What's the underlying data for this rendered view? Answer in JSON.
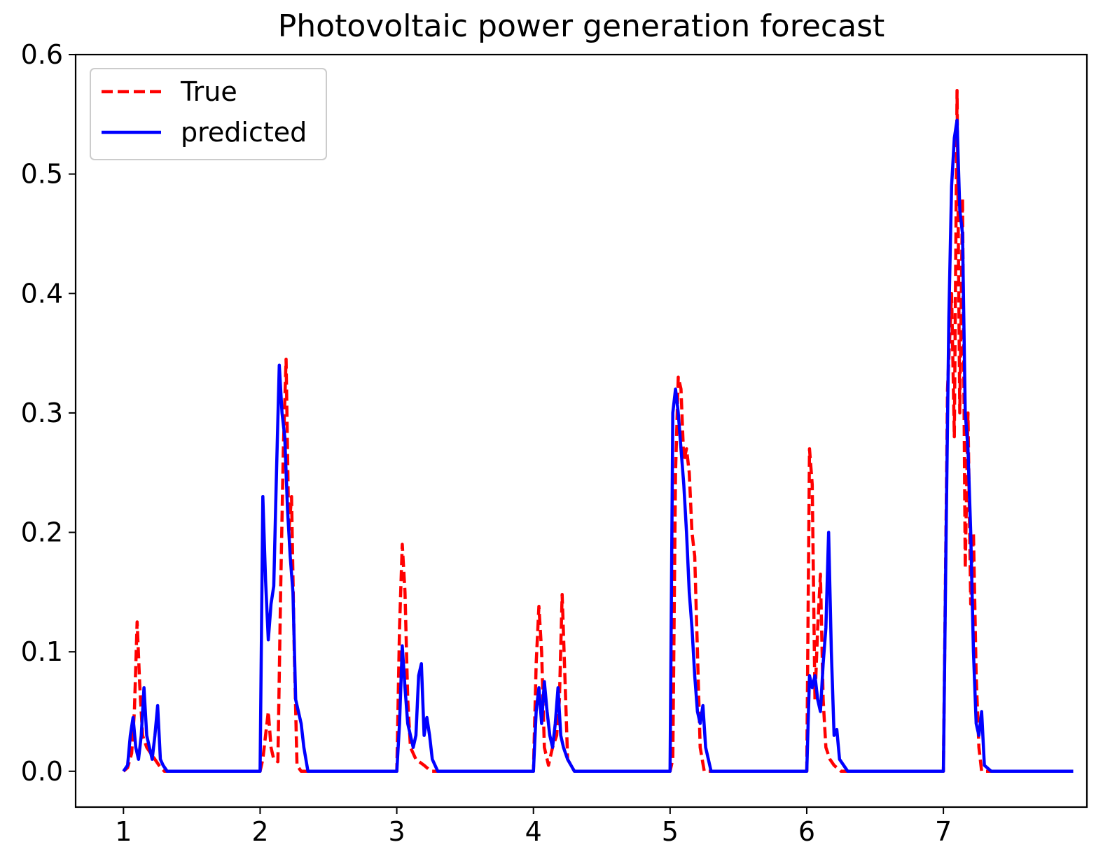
{
  "chart_data": {
    "type": "line",
    "title": "Photovoltaic power generation forecast",
    "xlabel": "",
    "ylabel": "",
    "xlim": [
      0.65,
      8.05
    ],
    "ylim": [
      -0.03,
      0.6
    ],
    "xticks": [
      "1",
      "2",
      "3",
      "4",
      "5",
      "6",
      "7"
    ],
    "yticks": [
      "0.0",
      "0.1",
      "0.2",
      "0.3",
      "0.4",
      "0.5",
      "0.6"
    ],
    "grid": false,
    "legend_position": "top-left",
    "series": [
      {
        "name": "True",
        "color": "#ff0000",
        "style": "dashed",
        "points": [
          [
            1.0,
            0.0
          ],
          [
            1.03,
            0.003
          ],
          [
            1.06,
            0.015
          ],
          [
            1.08,
            0.05
          ],
          [
            1.1,
            0.125
          ],
          [
            1.12,
            0.07
          ],
          [
            1.14,
            0.03
          ],
          [
            1.17,
            0.02
          ],
          [
            1.2,
            0.015
          ],
          [
            1.23,
            0.01
          ],
          [
            1.26,
            0.005
          ],
          [
            1.3,
            0.0
          ],
          [
            2.0,
            0.0
          ],
          [
            2.02,
            0.01
          ],
          [
            2.04,
            0.03
          ],
          [
            2.06,
            0.05
          ],
          [
            2.08,
            0.02
          ],
          [
            2.1,
            0.01
          ],
          [
            2.13,
            0.008
          ],
          [
            2.15,
            0.15
          ],
          [
            2.17,
            0.27
          ],
          [
            2.19,
            0.345
          ],
          [
            2.21,
            0.2
          ],
          [
            2.23,
            0.23
          ],
          [
            2.25,
            0.1
          ],
          [
            2.27,
            0.005
          ],
          [
            2.3,
            0.0
          ],
          [
            3.0,
            0.0
          ],
          [
            3.02,
            0.12
          ],
          [
            3.04,
            0.19
          ],
          [
            3.06,
            0.15
          ],
          [
            3.08,
            0.06
          ],
          [
            3.1,
            0.02
          ],
          [
            3.14,
            0.01
          ],
          [
            3.2,
            0.005
          ],
          [
            3.25,
            0.0
          ],
          [
            4.0,
            0.0
          ],
          [
            4.02,
            0.09
          ],
          [
            4.04,
            0.138
          ],
          [
            4.06,
            0.1
          ],
          [
            4.08,
            0.02
          ],
          [
            4.11,
            0.005
          ],
          [
            4.14,
            0.02
          ],
          [
            4.17,
            0.03
          ],
          [
            4.19,
            0.06
          ],
          [
            4.21,
            0.148
          ],
          [
            4.23,
            0.08
          ],
          [
            4.25,
            0.01
          ],
          [
            4.3,
            0.0
          ],
          [
            5.0,
            0.0
          ],
          [
            5.02,
            0.01
          ],
          [
            5.04,
            0.25
          ],
          [
            5.06,
            0.33
          ],
          [
            5.08,
            0.32
          ],
          [
            5.1,
            0.26
          ],
          [
            5.12,
            0.27
          ],
          [
            5.14,
            0.25
          ],
          [
            5.16,
            0.2
          ],
          [
            5.18,
            0.18
          ],
          [
            5.2,
            0.1
          ],
          [
            5.22,
            0.02
          ],
          [
            5.25,
            0.0
          ],
          [
            6.0,
            0.0
          ],
          [
            6.02,
            0.27
          ],
          [
            6.04,
            0.24
          ],
          [
            6.06,
            0.06
          ],
          [
            6.08,
            0.12
          ],
          [
            6.1,
            0.165
          ],
          [
            6.12,
            0.06
          ],
          [
            6.14,
            0.02
          ],
          [
            6.17,
            0.01
          ],
          [
            6.2,
            0.005
          ],
          [
            6.25,
            0.0
          ],
          [
            7.0,
            0.0
          ],
          [
            7.03,
            0.32
          ],
          [
            7.06,
            0.4
          ],
          [
            7.08,
            0.28
          ],
          [
            7.1,
            0.57
          ],
          [
            7.12,
            0.3
          ],
          [
            7.14,
            0.48
          ],
          [
            7.16,
            0.17
          ],
          [
            7.18,
            0.3
          ],
          [
            7.2,
            0.14
          ],
          [
            7.22,
            0.2
          ],
          [
            7.24,
            0.08
          ],
          [
            7.26,
            0.02
          ],
          [
            7.28,
            0.0
          ],
          [
            7.95,
            0.0
          ]
        ]
      },
      {
        "name": "predicted",
        "color": "#0000ff",
        "style": "solid",
        "points": [
          [
            1.0,
            0.0
          ],
          [
            1.03,
            0.005
          ],
          [
            1.05,
            0.03
          ],
          [
            1.07,
            0.045
          ],
          [
            1.09,
            0.02
          ],
          [
            1.11,
            0.01
          ],
          [
            1.13,
            0.03
          ],
          [
            1.15,
            0.07
          ],
          [
            1.17,
            0.03
          ],
          [
            1.19,
            0.02
          ],
          [
            1.21,
            0.01
          ],
          [
            1.23,
            0.03
          ],
          [
            1.25,
            0.055
          ],
          [
            1.27,
            0.01
          ],
          [
            1.29,
            0.005
          ],
          [
            1.32,
            0.0
          ],
          [
            2.0,
            0.0
          ],
          [
            2.02,
            0.23
          ],
          [
            2.04,
            0.16
          ],
          [
            2.06,
            0.11
          ],
          [
            2.08,
            0.14
          ],
          [
            2.1,
            0.155
          ],
          [
            2.12,
            0.25
          ],
          [
            2.14,
            0.34
          ],
          [
            2.16,
            0.3
          ],
          [
            2.18,
            0.28
          ],
          [
            2.2,
            0.22
          ],
          [
            2.22,
            0.18
          ],
          [
            2.24,
            0.15
          ],
          [
            2.26,
            0.06
          ],
          [
            2.28,
            0.05
          ],
          [
            2.3,
            0.04
          ],
          [
            2.32,
            0.02
          ],
          [
            2.35,
            0.0
          ],
          [
            3.0,
            0.0
          ],
          [
            3.02,
            0.04
          ],
          [
            3.04,
            0.105
          ],
          [
            3.06,
            0.07
          ],
          [
            3.08,
            0.04
          ],
          [
            3.1,
            0.03
          ],
          [
            3.12,
            0.02
          ],
          [
            3.14,
            0.03
          ],
          [
            3.16,
            0.08
          ],
          [
            3.18,
            0.09
          ],
          [
            3.2,
            0.03
          ],
          [
            3.22,
            0.045
          ],
          [
            3.24,
            0.03
          ],
          [
            3.26,
            0.01
          ],
          [
            3.3,
            0.0
          ],
          [
            4.0,
            0.0
          ],
          [
            4.02,
            0.05
          ],
          [
            4.04,
            0.07
          ],
          [
            4.06,
            0.04
          ],
          [
            4.08,
            0.075
          ],
          [
            4.1,
            0.05
          ],
          [
            4.12,
            0.03
          ],
          [
            4.14,
            0.02
          ],
          [
            4.16,
            0.04
          ],
          [
            4.18,
            0.07
          ],
          [
            4.2,
            0.03
          ],
          [
            4.22,
            0.02
          ],
          [
            4.25,
            0.01
          ],
          [
            4.3,
            0.0
          ],
          [
            5.0,
            0.0
          ],
          [
            5.02,
            0.3
          ],
          [
            5.04,
            0.32
          ],
          [
            5.06,
            0.3
          ],
          [
            5.08,
            0.27
          ],
          [
            5.1,
            0.24
          ],
          [
            5.12,
            0.2
          ],
          [
            5.14,
            0.15
          ],
          [
            5.16,
            0.12
          ],
          [
            5.18,
            0.08
          ],
          [
            5.2,
            0.05
          ],
          [
            5.22,
            0.04
          ],
          [
            5.24,
            0.055
          ],
          [
            5.26,
            0.02
          ],
          [
            5.3,
            0.0
          ],
          [
            6.0,
            0.0
          ],
          [
            6.02,
            0.08
          ],
          [
            6.04,
            0.07
          ],
          [
            6.06,
            0.08
          ],
          [
            6.08,
            0.06
          ],
          [
            6.1,
            0.05
          ],
          [
            6.12,
            0.09
          ],
          [
            6.14,
            0.12
          ],
          [
            6.16,
            0.2
          ],
          [
            6.18,
            0.1
          ],
          [
            6.2,
            0.03
          ],
          [
            6.22,
            0.035
          ],
          [
            6.24,
            0.01
          ],
          [
            6.3,
            0.0
          ],
          [
            7.0,
            0.0
          ],
          [
            7.02,
            0.2
          ],
          [
            7.04,
            0.38
          ],
          [
            7.06,
            0.49
          ],
          [
            7.08,
            0.53
          ],
          [
            7.1,
            0.545
          ],
          [
            7.12,
            0.47
          ],
          [
            7.14,
            0.45
          ],
          [
            7.16,
            0.3
          ],
          [
            7.18,
            0.27
          ],
          [
            7.2,
            0.2
          ],
          [
            7.22,
            0.1
          ],
          [
            7.24,
            0.04
          ],
          [
            7.26,
            0.03
          ],
          [
            7.28,
            0.05
          ],
          [
            7.3,
            0.005
          ],
          [
            7.35,
            0.0
          ],
          [
            7.95,
            0.0
          ]
        ]
      }
    ]
  }
}
